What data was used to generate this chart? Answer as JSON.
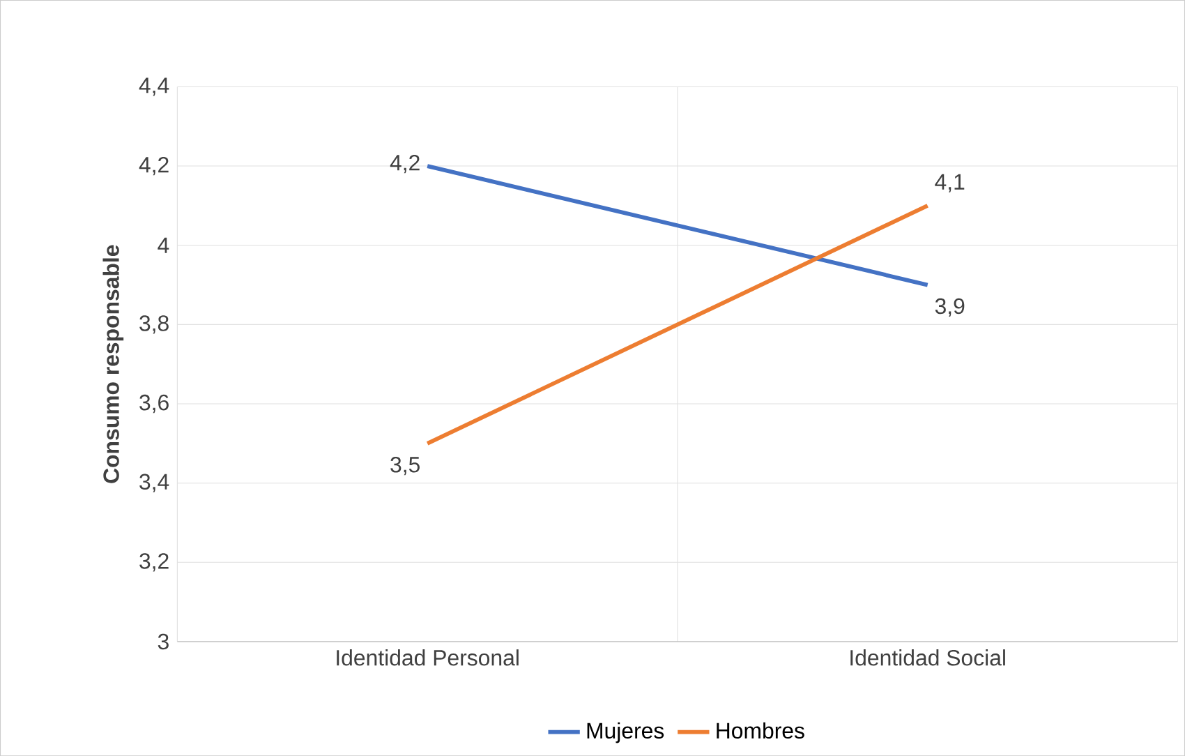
{
  "chart_data": {
    "type": "line",
    "ylabel": "Consumo responsable",
    "categories": [
      "Identidad Personal",
      "Identidad Social"
    ],
    "series": [
      {
        "name": "Mujeres",
        "color": "#4472c4",
        "values": [
          4.2,
          3.9
        ],
        "value_labels": [
          "4,2",
          "3,9"
        ]
      },
      {
        "name": "Hombres",
        "color": "#ed7d31",
        "values": [
          3.5,
          4.1
        ],
        "value_labels": [
          "3,5",
          "4,1"
        ]
      }
    ],
    "ylim": [
      3,
      4.4
    ],
    "yticks": [
      3,
      {
        "value": 3.2,
        "label": "3,2"
      },
      {
        "value": 3.4,
        "label": "3,4"
      },
      {
        "value": 3.6,
        "label": "3,6"
      },
      {
        "value": 3.8,
        "label": "3,8"
      },
      4,
      {
        "value": 4.2,
        "label": "4,2"
      },
      {
        "value": 4.4,
        "label": "4,4"
      }
    ],
    "grid": true,
    "legend": "bottom",
    "marker": "none",
    "line_style": "solid"
  }
}
